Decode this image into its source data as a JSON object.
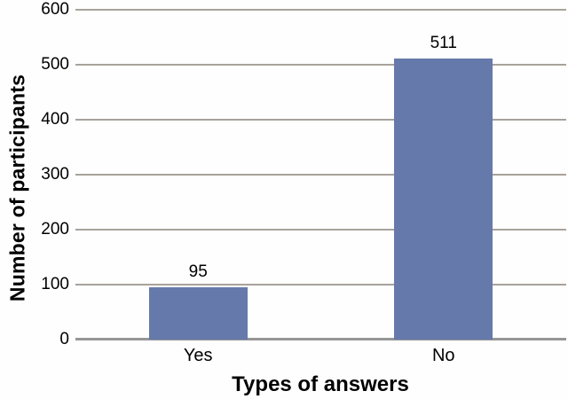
{
  "chart_data": {
    "type": "bar",
    "categories": [
      "Yes",
      "No"
    ],
    "values": [
      95,
      511
    ],
    "data_labels": [
      "95",
      "511"
    ],
    "title": "",
    "xlabel": "Types of answers",
    "ylabel": "Number of participants",
    "ylim": [
      0,
      600
    ],
    "yticks": [
      0,
      100,
      200,
      300,
      400,
      500,
      600
    ],
    "grid": true,
    "legend": "none",
    "colors": {
      "bar_fill": "#6579ab",
      "gridline": "#a8a29b",
      "axis_line": "#969696",
      "text": "#000000",
      "background": "#fefefe"
    }
  }
}
